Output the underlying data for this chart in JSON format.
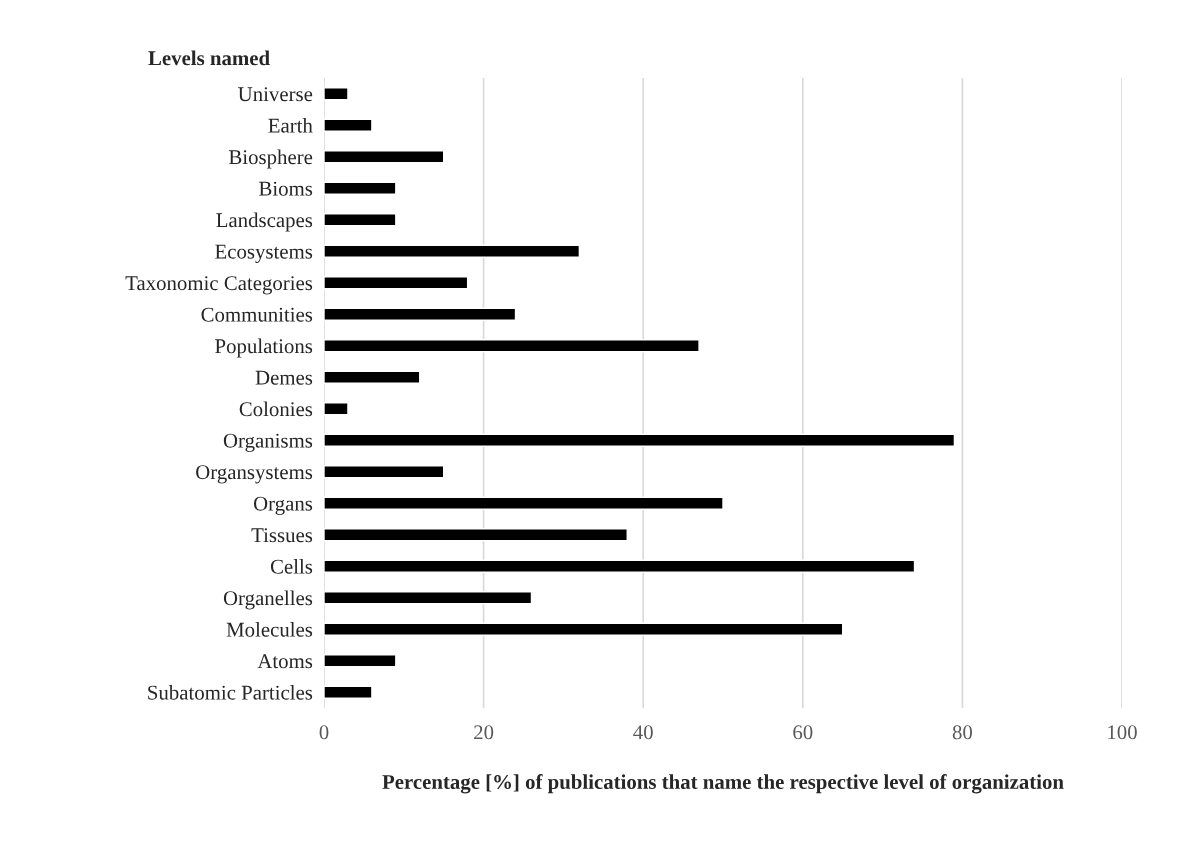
{
  "chart_data": {
    "type": "bar",
    "orientation": "horizontal",
    "ylabel": "Levels named",
    "xlabel": "Percentage [%] of publications that name the respective level of organization",
    "categories": [
      "Universe",
      "Earth",
      "Biosphere",
      "Bioms",
      "Landscapes",
      "Ecosystems",
      "Taxonomic Categories",
      "Communities",
      "Populations",
      "Demes",
      "Colonies",
      "Organisms",
      "Organsystems",
      "Organs",
      "Tissues",
      "Cells",
      "Organelles",
      "Molecules",
      "Atoms",
      "Subatomic Particles"
    ],
    "values": [
      3,
      6,
      15,
      9,
      9,
      32,
      18,
      24,
      47,
      12,
      3,
      79,
      15,
      50,
      38,
      74,
      26,
      65,
      9,
      6
    ],
    "color": "#000000",
    "xlim": [
      0,
      100
    ],
    "xticks": [
      0,
      20,
      40,
      60,
      80,
      100
    ],
    "grid": "x",
    "legend": false
  }
}
